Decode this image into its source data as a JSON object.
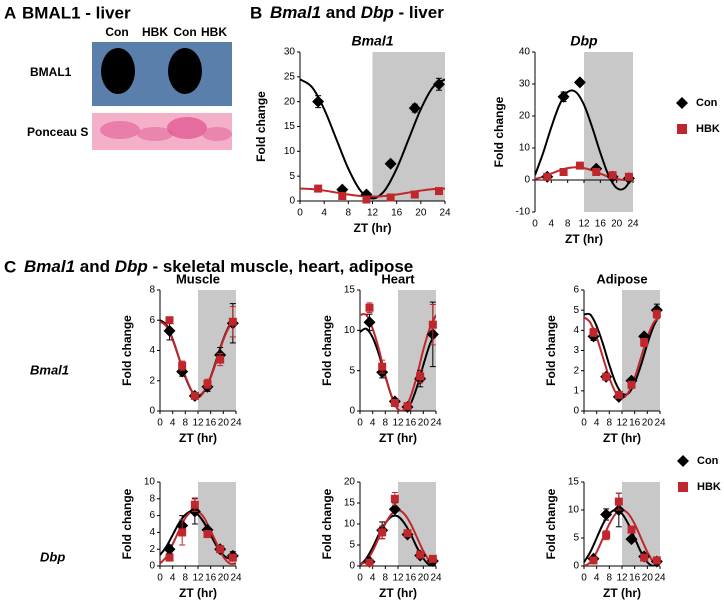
{
  "panel_a": {
    "letter": "A",
    "title": "BMAL1 - liver",
    "lanes": [
      "Con",
      "HBK",
      "Con",
      "HBK"
    ],
    "rows": [
      "BMAL1",
      "Ponceau S"
    ]
  },
  "panel_b": {
    "letter": "B",
    "title": [
      {
        "text": "Bmal1",
        "italic": true
      },
      {
        "text": " and "
      },
      {
        "text": "Dbp",
        "italic": true
      },
      {
        "text": " - liver"
      }
    ]
  },
  "panel_c": {
    "letter": "C",
    "title": [
      {
        "text": "Bmal1",
        "italic": true
      },
      {
        "text": " and "
      },
      {
        "text": "Dbp",
        "italic": true
      },
      {
        "text": " - skeletal muscle, heart, adipose"
      }
    ],
    "columns": [
      "Muscle",
      "Heart",
      "Adipose"
    ],
    "rows": [
      "Bmal1",
      "Dbp"
    ]
  },
  "chart_data": [
    {
      "type": "scatter",
      "title": "Bmal1",
      "xlabel": "ZT (hr)",
      "ylabel": "Fold change",
      "x": [
        3,
        7,
        11,
        15,
        19,
        23
      ],
      "fit_x": [
        0,
        2,
        4,
        6,
        8,
        10,
        12,
        14,
        16,
        18,
        20,
        22,
        24
      ],
      "xlim": [
        0,
        24
      ],
      "xticks": [
        0,
        4,
        8,
        12,
        16,
        20,
        24
      ],
      "ylim": [
        0,
        30
      ],
      "yticks": [
        0,
        5,
        10,
        15,
        20,
        25,
        30
      ],
      "shade": [
        12,
        24
      ],
      "series": [
        {
          "name": "Con",
          "color": "#000000",
          "marker": "diamond",
          "values": [
            20,
            2.3,
            1.3,
            7.5,
            18.7,
            23.5
          ],
          "errors": [
            1.2,
            0.3,
            0.3,
            0.5,
            0.8,
            1.2
          ],
          "fit": [
            24.5,
            22.9,
            18.5,
            12.5,
            6.5,
            2.1,
            0.5,
            2.1,
            6.5,
            12.5,
            18.5,
            22.9,
            24.5
          ]
        },
        {
          "name": "HBK",
          "color": "#c0272d",
          "marker": "square",
          "values": [
            2.5,
            1.0,
            0.3,
            0.7,
            1.3,
            2.0
          ],
          "errors": [
            0.3,
            0.2,
            0.1,
            0.2,
            0.2,
            0.3
          ],
          "fit": [
            2.5,
            2.4,
            2.1,
            1.7,
            1.3,
            1.0,
            0.9,
            1.0,
            1.3,
            1.7,
            2.1,
            2.4,
            2.5
          ]
        }
      ]
    },
    {
      "type": "scatter",
      "title": "Dbp",
      "xlabel": "ZT (hr)",
      "ylabel": "Fold change",
      "x": [
        3,
        7,
        11,
        15,
        19,
        23
      ],
      "fit_x": [
        0,
        2,
        4,
        6,
        8,
        10,
        12,
        14,
        16,
        18,
        20,
        22,
        24
      ],
      "xlim": [
        0,
        24
      ],
      "xticks": [
        0,
        4,
        8,
        12,
        16,
        20,
        24
      ],
      "ylim": [
        -10,
        40
      ],
      "yticks": [
        -10,
        0,
        10,
        20,
        30,
        40
      ],
      "shade": [
        12,
        24
      ],
      "series": [
        {
          "name": "Con",
          "color": "#000000",
          "marker": "diamond",
          "values": [
            1,
            26,
            30.5,
            3.5,
            1,
            0.5
          ],
          "errors": [
            0.3,
            1.5,
            0.5,
            0.5,
            0.3,
            0.3
          ],
          "fit": [
            1.5,
            8.5,
            16.5,
            23.5,
            27.5,
            27.5,
            23.5,
            16.5,
            8.5,
            1.5,
            -2.5,
            -2.5,
            1.5
          ]
        },
        {
          "name": "HBK",
          "color": "#c0272d",
          "marker": "square",
          "values": [
            1,
            2.5,
            4.5,
            2.5,
            1.5,
            1
          ],
          "errors": [
            0.3,
            0.4,
            0.5,
            0.4,
            0.3,
            0.3
          ],
          "fit": [
            0.3,
            1,
            2,
            3,
            3.7,
            4,
            3.7,
            3,
            2,
            1,
            0.3,
            0,
            0.3
          ]
        }
      ]
    },
    {
      "type": "scatter",
      "xlabel": "ZT (hr)",
      "ylabel": "Fold change",
      "x": [
        3,
        7,
        11,
        15,
        19,
        23
      ],
      "fit_x": [
        0,
        2,
        4,
        6,
        8,
        10,
        12,
        14,
        16,
        18,
        20,
        22,
        24
      ],
      "xlim": [
        0,
        24
      ],
      "xticks": [
        0,
        4,
        8,
        12,
        16,
        20,
        24
      ],
      "ylim": [
        0,
        8
      ],
      "yticks": [
        0,
        2,
        4,
        6,
        8
      ],
      "shade": [
        12,
        24
      ],
      "series": [
        {
          "name": "Con",
          "color": "#000000",
          "marker": "diamond",
          "values": [
            5.3,
            2.6,
            1.0,
            1.6,
            3.7,
            5.8
          ],
          "errors": [
            0.6,
            0.3,
            0.1,
            0.3,
            0.5,
            1.3
          ],
          "fit": [
            6,
            5.7,
            4.75,
            3.5,
            2.25,
            1.33,
            1,
            1.33,
            2.25,
            3.5,
            4.75,
            5.67,
            6
          ]
        },
        {
          "name": "HBK",
          "color": "#c0272d",
          "marker": "square",
          "values": [
            6.0,
            3.0,
            1.0,
            1.8,
            3.4,
            5.9
          ],
          "errors": [
            0.2,
            0.3,
            0.1,
            0.3,
            0.4,
            1.0
          ],
          "fit": [
            5.9,
            5.6,
            4.7,
            3.5,
            2.3,
            1.35,
            0.9,
            1.3,
            2.2,
            3.4,
            4.7,
            5.6,
            5.9
          ]
        }
      ]
    },
    {
      "type": "scatter",
      "xlabel": "ZT (hr)",
      "ylabel": "Fold change",
      "x": [
        3,
        7,
        11,
        15,
        19,
        23
      ],
      "fit_x": [
        0,
        2,
        4,
        6,
        8,
        10,
        12,
        14,
        16,
        18,
        20,
        22,
        24
      ],
      "xlim": [
        0,
        24
      ],
      "xticks": [
        0,
        4,
        8,
        12,
        16,
        20,
        24
      ],
      "ylim": [
        0,
        15
      ],
      "yticks": [
        0,
        5,
        10,
        15
      ],
      "shade": [
        12,
        24
      ],
      "series": [
        {
          "name": "Con",
          "color": "#000000",
          "marker": "diamond",
          "values": [
            11,
            4.8,
            1.2,
            0.5,
            4,
            9.5
          ],
          "errors": [
            1,
            0.7,
            0.3,
            0.2,
            1,
            4
          ],
          "fit": [
            9.8,
            10.2,
            9.1,
            7,
            4.3,
            1.8,
            0.2,
            -0.2,
            0.9,
            3,
            5.7,
            8.2,
            9.8
          ]
        },
        {
          "name": "HBK",
          "color": "#c0272d",
          "marker": "square",
          "values": [
            12.8,
            5.5,
            1.0,
            0.6,
            4.3,
            10.7
          ],
          "errors": [
            0.6,
            0.8,
            0.3,
            0.2,
            0.8,
            2.5
          ],
          "fit": [
            11.9,
            11.9,
            10.2,
            7.6,
            4.4,
            1.8,
            0.2,
            0.2,
            1.8,
            4.4,
            7.6,
            10.2,
            11.9
          ]
        }
      ]
    },
    {
      "type": "scatter",
      "xlabel": "ZT (hr)",
      "ylabel": "Fold change",
      "x": [
        3,
        7,
        11,
        15,
        19,
        23
      ],
      "fit_x": [
        0,
        2,
        4,
        6,
        8,
        10,
        12,
        14,
        16,
        18,
        20,
        22,
        24
      ],
      "xlim": [
        0,
        24
      ],
      "xticks": [
        0,
        4,
        8,
        12,
        16,
        20,
        24
      ],
      "ylim": [
        0,
        6
      ],
      "yticks": [
        0,
        1,
        2,
        3,
        4,
        5,
        6
      ],
      "shade": [
        12,
        24
      ],
      "series": [
        {
          "name": "Con",
          "color": "#000000",
          "marker": "diamond",
          "values": [
            3.7,
            1.7,
            0.7,
            1.5,
            3.7,
            5.0
          ],
          "errors": [
            0.2,
            0.1,
            0.1,
            0.1,
            0.1,
            0.3
          ],
          "fit": [
            4.78,
            4.78,
            4.21,
            3.32,
            2.28,
            1.39,
            0.87,
            0.87,
            1.39,
            2.28,
            3.32,
            4.21,
            4.78
          ]
        },
        {
          "name": "HBK",
          "color": "#c0272d",
          "marker": "square",
          "values": [
            3.9,
            1.7,
            0.8,
            1.3,
            3.4,
            4.8
          ],
          "errors": [
            0.2,
            0.1,
            0.1,
            0.1,
            0.2,
            0.2
          ],
          "fit": [
            4.65,
            4.38,
            3.65,
            2.65,
            1.65,
            0.92,
            0.65,
            0.92,
            1.65,
            2.65,
            3.65,
            4.38,
            4.65
          ]
        }
      ]
    },
    {
      "type": "scatter",
      "xlabel": "ZT (hr)",
      "ylabel": "Fold change",
      "x": [
        3,
        7,
        11,
        15,
        19,
        23
      ],
      "fit_x": [
        0,
        2,
        4,
        6,
        8,
        10,
        12,
        14,
        16,
        18,
        20,
        22,
        24
      ],
      "xlim": [
        0,
        24
      ],
      "xticks": [
        0,
        4,
        8,
        12,
        16,
        20,
        24
      ],
      "ylim": [
        0,
        10
      ],
      "yticks": [
        0,
        2,
        4,
        6,
        8,
        10
      ],
      "shade": [
        12,
        24
      ],
      "series": [
        {
          "name": "Con",
          "color": "#000000",
          "marker": "diamond",
          "values": [
            2,
            4.8,
            6.5,
            4.3,
            2,
            1.2
          ],
          "errors": [
            0.5,
            1.2,
            1.5,
            0.3,
            0.3,
            0.5
          ],
          "fit": [
            1.3,
            2.3,
            3.7,
            5.1,
            6.1,
            6.5,
            6.1,
            5.1,
            3.7,
            2.3,
            1.3,
            0.9,
            1.3
          ]
        },
        {
          "name": "HBK",
          "color": "#c0272d",
          "marker": "square",
          "values": [
            1.0,
            4.0,
            7.3,
            3.8,
            2.0,
            1.0
          ],
          "errors": [
            0.3,
            1.5,
            0.8,
            0.4,
            0.3,
            0.3
          ],
          "fit": [
            0.3,
            1.1,
            2.6,
            4.2,
            5.7,
            6.5,
            6.5,
            5.7,
            4.2,
            2.6,
            1.1,
            0.3,
            0.3
          ]
        }
      ]
    },
    {
      "type": "scatter",
      "xlabel": "ZT (hr)",
      "ylabel": "Fold change",
      "x": [
        3,
        7,
        11,
        15,
        19,
        23
      ],
      "fit_x": [
        0,
        2,
        4,
        6,
        8,
        10,
        12,
        14,
        16,
        18,
        20,
        22,
        24
      ],
      "xlim": [
        0,
        24
      ],
      "xticks": [
        0,
        4,
        8,
        12,
        16,
        20,
        24
      ],
      "ylim": [
        0,
        20
      ],
      "yticks": [
        0,
        5,
        10,
        15,
        20
      ],
      "shade": [
        12,
        24
      ],
      "series": [
        {
          "name": "Con",
          "color": "#000000",
          "marker": "diamond",
          "values": [
            1,
            8.5,
            13.5,
            7.5,
            2.5,
            1.2
          ],
          "errors": [
            0.3,
            2,
            1.5,
            0.7,
            0.4,
            0.5
          ],
          "fit": [
            0.2,
            1.8,
            4.4,
            7.6,
            10.2,
            11.8,
            11.8,
            10.2,
            7.6,
            4.4,
            1.8,
            0.2,
            0.2
          ]
        },
        {
          "name": "HBK",
          "color": "#c0272d",
          "marker": "square",
          "values": [
            0.8,
            8,
            16,
            7.8,
            2.7,
            1.7
          ],
          "errors": [
            0.3,
            1.5,
            1.5,
            0.7,
            0.4,
            0.5
          ],
          "fit": [
            0.3,
            1.2,
            3.55,
            6.8,
            10.05,
            12.4,
            13.3,
            12.4,
            10.05,
            6.8,
            3.55,
            1.2,
            0.3
          ]
        }
      ]
    },
    {
      "type": "scatter",
      "xlabel": "ZT (hr)",
      "ylabel": "Fold change",
      "x": [
        3,
        7,
        11,
        15,
        19,
        23
      ],
      "fit_x": [
        0,
        2,
        4,
        6,
        8,
        10,
        12,
        14,
        16,
        18,
        20,
        22,
        24
      ],
      "xlim": [
        0,
        24
      ],
      "xticks": [
        0,
        4,
        8,
        12,
        16,
        20,
        24
      ],
      "ylim": [
        0,
        15
      ],
      "yticks": [
        0,
        5,
        10,
        15
      ],
      "shade": [
        12,
        24
      ],
      "series": [
        {
          "name": "Con",
          "color": "#000000",
          "marker": "diamond",
          "values": [
            1.3,
            9.2,
            10,
            4.8,
            1.7,
            0.8
          ],
          "errors": [
            0.3,
            1,
            3,
            0.5,
            0.3,
            0.2
          ],
          "fit": [
            0.67,
            2.5,
            5,
            7.5,
            9.33,
            10,
            9.33,
            7.5,
            5,
            2.5,
            0.67,
            0,
            0.67
          ]
        },
        {
          "name": "HBK",
          "color": "#c0272d",
          "marker": "square",
          "values": [
            1.0,
            5.5,
            11.5,
            6.5,
            1.5,
            1.0
          ],
          "errors": [
            0.3,
            0.8,
            1.5,
            0.6,
            0.3,
            0.2
          ],
          "fit": [
            0,
            0.67,
            2.5,
            5,
            7.5,
            9.33,
            10,
            9.33,
            7.5,
            5,
            2.5,
            0.67,
            0
          ]
        }
      ]
    }
  ]
}
